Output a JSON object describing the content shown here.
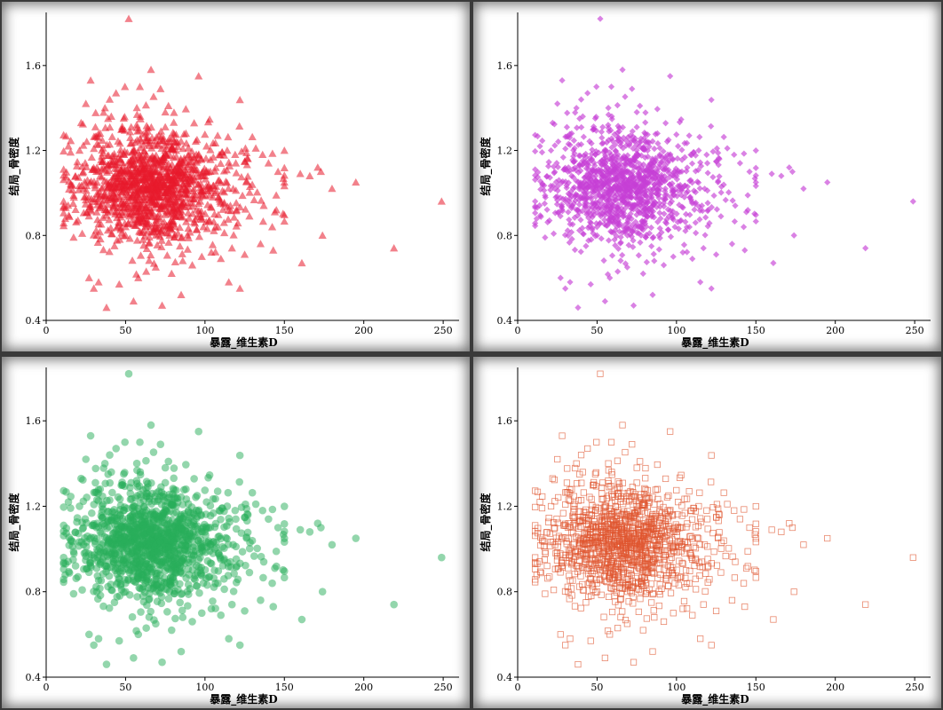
{
  "chart_data": [
    {
      "type": "scatter",
      "panel": "top-left",
      "xlabel": "暴露_维生素D",
      "ylabel": "结局_骨密度",
      "xlim": [
        0,
        260
      ],
      "ylim": [
        0.4,
        1.85
      ],
      "xticks": [
        0,
        50,
        100,
        150,
        200,
        250
      ],
      "yticks": [
        0.4,
        0.8,
        1.2,
        1.6
      ],
      "marker": "triangle",
      "color": "#e8192c",
      "filled": true
    },
    {
      "type": "scatter",
      "panel": "top-right",
      "xlabel": "暴露_维生素D",
      "ylabel": "结局_骨密度",
      "xlim": [
        0,
        260
      ],
      "ylim": [
        0.4,
        1.85
      ],
      "xticks": [
        0,
        50,
        100,
        150,
        200,
        250
      ],
      "yticks": [
        0.4,
        0.8,
        1.2,
        1.6
      ],
      "marker": "diamond",
      "color": "#c63fd6",
      "filled": true
    },
    {
      "type": "scatter",
      "panel": "bottom-left",
      "xlabel": "暴露_维生素D",
      "ylabel": "结局_骨密度",
      "xlim": [
        0,
        260
      ],
      "ylim": [
        0.4,
        1.85
      ],
      "xticks": [
        0,
        50,
        100,
        150,
        200,
        250
      ],
      "yticks": [
        0.4,
        0.8,
        1.2,
        1.6
      ],
      "marker": "circle",
      "color": "#27ae5a",
      "filled": true
    },
    {
      "type": "scatter",
      "panel": "bottom-right",
      "xlabel": "暴露_维生素D",
      "ylabel": "结局_骨密度",
      "xlim": [
        0,
        260
      ],
      "ylim": [
        0.4,
        1.85
      ],
      "xticks": [
        0,
        50,
        100,
        150,
        200,
        250
      ],
      "yticks": [
        0.4,
        0.8,
        1.2,
        1.6
      ],
      "marker": "square-open",
      "color": "#e0552f",
      "filled": false
    }
  ],
  "points": {
    "x": [
      52,
      66,
      96,
      72,
      59,
      77,
      44,
      28,
      40,
      37,
      41,
      25,
      22,
      31,
      34,
      39,
      48,
      53,
      57,
      64,
      71,
      75,
      82,
      88,
      95,
      101,
      108,
      114,
      119,
      127,
      132,
      140,
      146,
      150,
      160,
      166,
      171,
      173,
      180,
      195,
      219,
      249,
      174,
      161,
      122,
      115,
      85,
      73,
      55,
      30,
      38,
      46,
      58,
      63,
      69,
      79,
      86,
      92,
      98,
      104,
      110,
      117,
      125,
      135,
      143,
      20,
      14,
      17,
      27,
      33,
      43,
      50,
      61,
      68,
      78,
      83,
      90,
      99,
      106,
      112,
      120,
      128,
      137,
      144,
      42,
      47,
      54,
      60,
      65,
      70,
      76,
      80,
      87,
      93,
      36,
      49,
      56,
      62,
      67,
      74,
      81,
      89,
      97,
      103,
      26,
      32,
      45,
      51,
      58,
      66,
      72,
      84,
      91,
      100,
      24,
      35,
      43,
      57,
      63,
      71,
      78,
      86,
      94,
      102,
      109,
      116,
      29,
      38,
      53,
      64,
      69,
      75,
      82,
      93,
      105,
      111,
      21,
      34,
      46,
      55,
      61,
      73,
      79,
      88,
      96,
      107
    ],
    "y": [
      1.82,
      1.58,
      1.55,
      1.49,
      1.5,
      1.41,
      1.47,
      1.53,
      1.44,
      1.4,
      1.36,
      1.42,
      1.33,
      1.31,
      1.28,
      1.35,
      1.3,
      1.26,
      1.32,
      1.29,
      1.27,
      1.31,
      1.24,
      1.28,
      1.25,
      1.22,
      1.27,
      1.2,
      1.18,
      1.16,
      1.21,
      1.14,
      1.1,
      1.05,
      1.09,
      1.08,
      1.12,
      1.1,
      1.02,
      1.05,
      0.74,
      0.96,
      0.8,
      0.67,
      0.55,
      0.58,
      0.52,
      0.47,
      0.49,
      0.55,
      0.46,
      0.57,
      0.6,
      0.63,
      0.65,
      0.62,
      0.68,
      0.66,
      0.7,
      0.72,
      0.69,
      0.74,
      0.71,
      0.76,
      0.73,
      0.87,
      1.22,
      0.95,
      0.6,
      0.58,
      0.75,
      0.8,
      0.78,
      0.83,
      0.85,
      0.81,
      0.88,
      0.84,
      0.9,
      0.86,
      0.92,
      0.89,
      0.94,
      0.91,
      1.0,
      1.05,
      1.08,
      1.02,
      1.12,
      0.98,
      1.06,
      1.1,
      1.03,
      0.97,
      1.15,
      1.18,
      1.1,
      1.14,
      1.07,
      1.04,
      1.11,
      1.01,
      0.96,
      0.99,
      1.06,
      1.12,
      0.93,
      1.19,
      1.16,
      1.09,
      1.13,
      1.0,
      1.05,
      1.08,
      0.98,
      1.02,
      1.17,
      0.95,
      1.01,
      1.07,
      0.97,
      1.04,
      0.99,
      1.03,
      1.06,
      0.94,
      1.11,
      0.92,
      1.09,
      1.13,
      0.96,
      1.0,
      1.05,
      1.02,
      0.98,
      1.01,
      1.2,
      1.08,
      1.04,
      0.93,
      1.15,
      1.06,
      0.9,
      1.1,
      0.95,
      1.03
    ]
  }
}
